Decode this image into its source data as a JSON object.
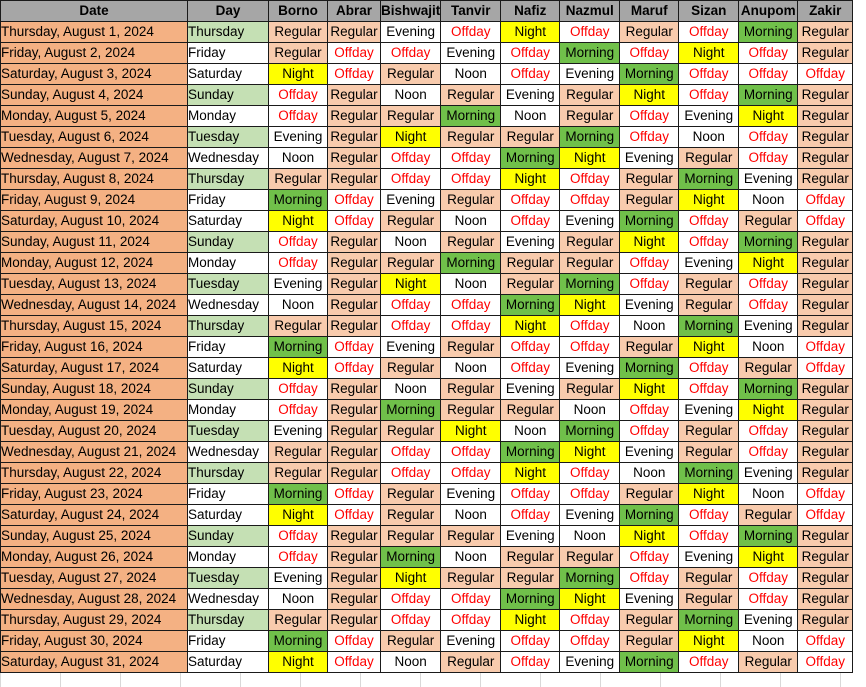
{
  "columns": [
    "Date",
    "Day",
    "Borno",
    "Abrar",
    "Bishwajit",
    "Tanvir",
    "Nafiz",
    "Nazmul",
    "Maruf",
    "Sizan",
    "Anupom",
    "Zakir"
  ],
  "rows": [
    {
      "date": "Thursday, August 1, 2024",
      "day": "Thursday",
      "shifts": [
        "Regular",
        "Regular",
        "Evening",
        "Offday",
        "Night",
        "Offday",
        "Regular",
        "Offday",
        "Morning",
        "Regular"
      ]
    },
    {
      "date": "Friday, August 2, 2024",
      "day": "Friday",
      "shifts": [
        "Regular",
        "Offday",
        "Offday",
        "Evening",
        "Offday",
        "Morning",
        "Offday",
        "Night",
        "Offday",
        "Regular"
      ]
    },
    {
      "date": "Saturday, August 3, 2024",
      "day": "Saturday",
      "shifts": [
        "Night",
        "Offday",
        "Regular",
        "Noon",
        "Offday",
        "Evening",
        "Morning",
        "Offday",
        "Offday",
        "Offday"
      ]
    },
    {
      "date": "Sunday, August 4, 2024",
      "day": "Sunday",
      "shifts": [
        "Offday",
        "Regular",
        "Noon",
        "Regular",
        "Evening",
        "Regular",
        "Night",
        "Offday",
        "Morning",
        "Regular"
      ]
    },
    {
      "date": "Monday, August 5, 2024",
      "day": "Monday",
      "shifts": [
        "Offday",
        "Regular",
        "Regular",
        "Morning",
        "Noon",
        "Regular",
        "Offday",
        "Evening",
        "Night",
        "Regular"
      ]
    },
    {
      "date": "Tuesday, August 6, 2024",
      "day": "Tuesday",
      "shifts": [
        "Evening",
        "Regular",
        "Night",
        "Regular",
        "Regular",
        "Morning",
        "Offday",
        "Noon",
        "Offday",
        "Regular"
      ]
    },
    {
      "date": "Wednesday, August 7, 2024",
      "day": "Wednesday",
      "shifts": [
        "Noon",
        "Regular",
        "Offday",
        "Offday",
        "Morning",
        "Night",
        "Evening",
        "Regular",
        "Offday",
        "Regular"
      ]
    },
    {
      "date": "Thursday, August 8, 2024",
      "day": "Thursday",
      "shifts": [
        "Regular",
        "Regular",
        "Offday",
        "Offday",
        "Night",
        "Offday",
        "Regular",
        "Morning",
        "Evening",
        "Regular"
      ]
    },
    {
      "date": "Friday, August 9, 2024",
      "day": "Friday",
      "shifts": [
        "Morning",
        "Offday",
        "Evening",
        "Regular",
        "Offday",
        "Offday",
        "Regular",
        "Night",
        "Noon",
        "Offday"
      ]
    },
    {
      "date": "Saturday, August 10, 2024",
      "day": "Saturday",
      "shifts": [
        "Night",
        "Offday",
        "Regular",
        "Noon",
        "Offday",
        "Evening",
        "Morning",
        "Offday",
        "Regular",
        "Offday"
      ]
    },
    {
      "date": "Sunday, August 11, 2024",
      "day": "Sunday",
      "shifts": [
        "Offday",
        "Regular",
        "Noon",
        "Regular",
        "Evening",
        "Regular",
        "Night",
        "Offday",
        "Morning",
        "Regular"
      ]
    },
    {
      "date": "Monday, August 12, 2024",
      "day": "Monday",
      "shifts": [
        "Offday",
        "Regular",
        "Regular",
        "Morning",
        "Regular",
        "Regular",
        "Offday",
        "Evening",
        "Night",
        "Regular"
      ]
    },
    {
      "date": "Tuesday, August 13, 2024",
      "day": "Tuesday",
      "shifts": [
        "Evening",
        "Regular",
        "Night",
        "Noon",
        "Regular",
        "Morning",
        "Offday",
        "Regular",
        "Offday",
        "Regular"
      ]
    },
    {
      "date": "Wednesday, August 14, 2024",
      "day": "Wednesday",
      "shifts": [
        "Noon",
        "Regular",
        "Offday",
        "Offday",
        "Morning",
        "Night",
        "Evening",
        "Regular",
        "Offday",
        "Regular"
      ]
    },
    {
      "date": "Thursday, August 15, 2024",
      "day": "Thursday",
      "shifts": [
        "Regular",
        "Regular",
        "Offday",
        "Offday",
        "Night",
        "Offday",
        "Noon",
        "Morning",
        "Evening",
        "Regular"
      ]
    },
    {
      "date": "Friday, August 16, 2024",
      "day": "Friday",
      "shifts": [
        "Morning",
        "Offday",
        "Evening",
        "Regular",
        "Offday",
        "Offday",
        "Regular",
        "Night",
        "Noon",
        "Offday"
      ]
    },
    {
      "date": "Saturday, August 17, 2024",
      "day": "Saturday",
      "shifts": [
        "Night",
        "Offday",
        "Regular",
        "Noon",
        "Offday",
        "Evening",
        "Morning",
        "Offday",
        "Regular",
        "Offday"
      ]
    },
    {
      "date": "Sunday, August 18, 2024",
      "day": "Sunday",
      "shifts": [
        "Offday",
        "Regular",
        "Noon",
        "Regular",
        "Evening",
        "Regular",
        "Night",
        "Offday",
        "Morning",
        "Regular"
      ]
    },
    {
      "date": "Monday, August 19, 2024",
      "day": "Monday",
      "shifts": [
        "Offday",
        "Regular",
        "Morning",
        "Regular",
        "Regular",
        "Noon",
        "Offday",
        "Evening",
        "Night",
        "Regular"
      ]
    },
    {
      "date": "Tuesday, August 20, 2024",
      "day": "Tuesday",
      "shifts": [
        "Evening",
        "Regular",
        "Regular",
        "Night",
        "Noon",
        "Morning",
        "Offday",
        "Regular",
        "Offday",
        "Regular"
      ]
    },
    {
      "date": "Wednesday, August 21, 2024",
      "day": "Wednesday",
      "shifts": [
        "Regular",
        "Regular",
        "Offday",
        "Offday",
        "Morning",
        "Night",
        "Evening",
        "Regular",
        "Offday",
        "Regular"
      ]
    },
    {
      "date": "Thursday, August 22, 2024",
      "day": "Thursday",
      "shifts": [
        "Regular",
        "Regular",
        "Offday",
        "Offday",
        "Night",
        "Offday",
        "Noon",
        "Morning",
        "Evening",
        "Regular"
      ]
    },
    {
      "date": "Friday, August 23, 2024",
      "day": "Friday",
      "shifts": [
        "Morning",
        "Offday",
        "Regular",
        "Evening",
        "Offday",
        "Offday",
        "Regular",
        "Night",
        "Noon",
        "Offday"
      ]
    },
    {
      "date": "Saturday, August 24, 2024",
      "day": "Saturday",
      "shifts": [
        "Night",
        "Offday",
        "Regular",
        "Noon",
        "Offday",
        "Evening",
        "Morning",
        "Offday",
        "Regular",
        "Offday"
      ]
    },
    {
      "date": "Sunday, August 25, 2024",
      "day": "Sunday",
      "shifts": [
        "Offday",
        "Regular",
        "Regular",
        "Regular",
        "Evening",
        "Noon",
        "Night",
        "Offday",
        "Morning",
        "Regular"
      ]
    },
    {
      "date": "Monday, August 26, 2024",
      "day": "Monday",
      "shifts": [
        "Offday",
        "Regular",
        "Morning",
        "Noon",
        "Regular",
        "Regular",
        "Offday",
        "Evening",
        "Night",
        "Regular"
      ]
    },
    {
      "date": "Tuesday, August 27, 2024",
      "day": "Tuesday",
      "shifts": [
        "Evening",
        "Regular",
        "Night",
        "Regular",
        "Regular",
        "Morning",
        "Offday",
        "Regular",
        "Offday",
        "Regular"
      ]
    },
    {
      "date": "Wednesday, August 28, 2024",
      "day": "Wednesday",
      "shifts": [
        "Noon",
        "Regular",
        "Offday",
        "Offday",
        "Morning",
        "Night",
        "Evening",
        "Regular",
        "Offday",
        "Regular"
      ]
    },
    {
      "date": "Thursday, August 29, 2024",
      "day": "Thursday",
      "shifts": [
        "Regular",
        "Regular",
        "Offday",
        "Offday",
        "Night",
        "Offday",
        "Regular",
        "Morning",
        "Evening",
        "Regular"
      ]
    },
    {
      "date": "Friday, August 30, 2024",
      "day": "Friday",
      "shifts": [
        "Morning",
        "Offday",
        "Regular",
        "Evening",
        "Offday",
        "Offday",
        "Regular",
        "Night",
        "Noon",
        "Offday"
      ]
    },
    {
      "date": "Saturday, August 31, 2024",
      "day": "Saturday",
      "shifts": [
        "Night",
        "Offday",
        "Noon",
        "Regular",
        "Offday",
        "Evening",
        "Morning",
        "Offday",
        "Regular",
        "Offday"
      ]
    }
  ],
  "colors": {
    "header_bg": "#a6a6a6",
    "date_bg": "#f4b183",
    "day_alt_bg": "#c5e0b4",
    "regular_bg": "#f8cbad",
    "morning_bg": "#70c04a",
    "night_bg": "#ffff00",
    "offday_text": "#ff0000"
  }
}
